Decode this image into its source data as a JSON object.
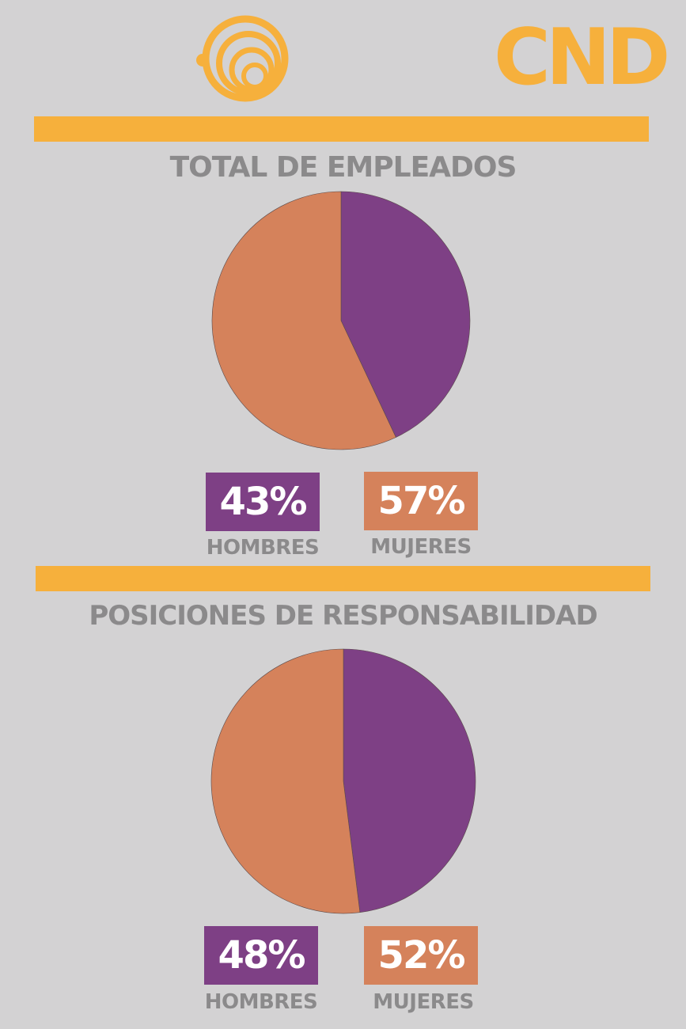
{
  "colors": {
    "background": "#d3d2d3",
    "accent": "#f6b03c",
    "title_gray": "#8b8a8b",
    "hombres": "#7e4085",
    "mujeres": "#d5825b"
  },
  "logo": {
    "text": "CND",
    "icon": "concentric-rings-icon"
  },
  "chart_data": [
    {
      "type": "pie",
      "title": "TOTAL DE EMPLEADOS",
      "slices": [
        {
          "label": "HOMBRES",
          "value": 43,
          "display": "43%",
          "color": "#7e4085"
        },
        {
          "label": "MUJERES",
          "value": 57,
          "display": "57%",
          "color": "#d5825b"
        }
      ],
      "legend": "bottom"
    },
    {
      "type": "pie",
      "title": "POSICIONES DE RESPONSABILIDAD",
      "slices": [
        {
          "label": "HOMBRES",
          "value": 48,
          "display": "48%",
          "color": "#7e4085"
        },
        {
          "label": "MUJERES",
          "value": 52,
          "display": "52%",
          "color": "#d5825b"
        }
      ],
      "legend": "bottom"
    }
  ]
}
